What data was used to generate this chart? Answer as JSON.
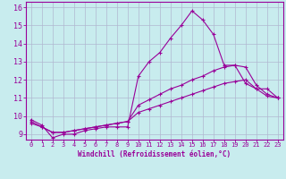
{
  "xlabel": "Windchill (Refroidissement éolien,°C)",
  "background_color": "#c8ecee",
  "line_color": "#990099",
  "grid_color": "#b0b8d0",
  "xlim": [
    -0.5,
    23.5
  ],
  "ylim": [
    8.7,
    16.3
  ],
  "xticks": [
    0,
    1,
    2,
    3,
    4,
    5,
    6,
    7,
    8,
    9,
    10,
    11,
    12,
    13,
    14,
    15,
    16,
    17,
    18,
    19,
    20,
    21,
    22,
    23
  ],
  "yticks": [
    9,
    10,
    11,
    12,
    13,
    14,
    15,
    16
  ],
  "line1_x": [
    0,
    1,
    2,
    3,
    4,
    5,
    6,
    7,
    8,
    9,
    10,
    11,
    12,
    13,
    14,
    15,
    16,
    17,
    18,
    19,
    20,
    21,
    22,
    23
  ],
  "line1_y": [
    9.8,
    9.5,
    8.8,
    9.0,
    9.0,
    9.2,
    9.3,
    9.4,
    9.4,
    9.4,
    12.2,
    13.0,
    13.5,
    14.3,
    15.0,
    15.8,
    15.3,
    14.5,
    12.8,
    12.8,
    11.8,
    11.5,
    11.5,
    11.0
  ],
  "line2_x": [
    0,
    1,
    2,
    3,
    4,
    5,
    6,
    7,
    8,
    9,
    10,
    11,
    12,
    13,
    14,
    15,
    16,
    17,
    18,
    19,
    20,
    21,
    22,
    23
  ],
  "line2_y": [
    9.7,
    9.4,
    9.1,
    9.1,
    9.2,
    9.3,
    9.4,
    9.5,
    9.6,
    9.7,
    10.6,
    10.9,
    11.2,
    11.5,
    11.7,
    12.0,
    12.2,
    12.5,
    12.7,
    12.8,
    12.7,
    11.7,
    11.2,
    11.0
  ],
  "line3_x": [
    0,
    1,
    2,
    3,
    4,
    5,
    6,
    7,
    8,
    9,
    10,
    11,
    12,
    13,
    14,
    15,
    16,
    17,
    18,
    19,
    20,
    21,
    22,
    23
  ],
  "line3_y": [
    9.6,
    9.4,
    9.1,
    9.1,
    9.2,
    9.3,
    9.4,
    9.5,
    9.6,
    9.7,
    10.2,
    10.4,
    10.6,
    10.8,
    11.0,
    11.2,
    11.4,
    11.6,
    11.8,
    11.9,
    12.0,
    11.5,
    11.1,
    11.0
  ]
}
